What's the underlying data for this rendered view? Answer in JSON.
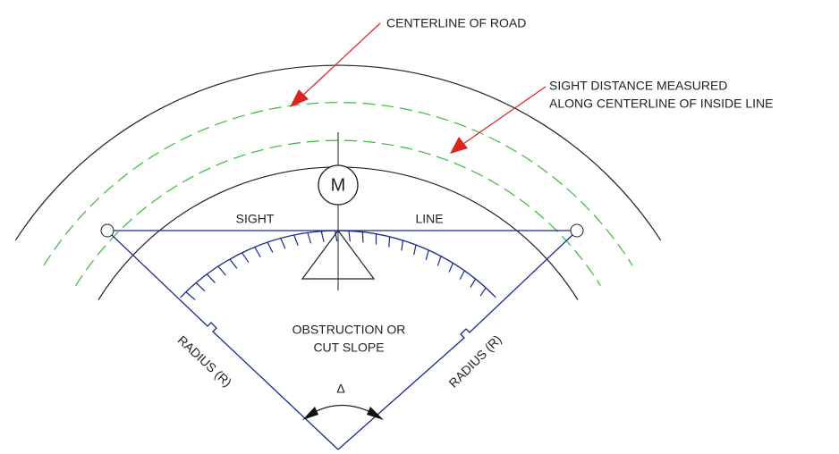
{
  "labels": {
    "centerline": "CENTERLINE OF ROAD",
    "sight_distance": [
      "SIGHT DISTANCE MEASURED",
      "ALONG CENTERLINE OF INSIDE LINE"
    ],
    "marker": "M",
    "sight": "SIGHT",
    "line": "LINE",
    "obstruction": [
      "OBSTRUCTION OR",
      "CUT SLOPE"
    ],
    "radius_left": "RADIUS (R)",
    "radius_right": "RADIUS (R)",
    "angle": "Δ"
  }
}
